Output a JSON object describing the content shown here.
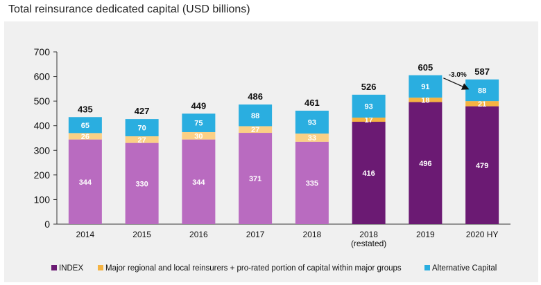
{
  "title": "Total reinsurance dedicated capital (USD billions)",
  "chart_data": {
    "type": "bar",
    "stacked": true,
    "categories": [
      "2014",
      "2015",
      "2016",
      "2017",
      "2018",
      "2018\n(restated)",
      "2019",
      "2020 HY"
    ],
    "series": [
      {
        "name": "INDEX",
        "values": [
          344,
          330,
          344,
          371,
          335,
          416,
          496,
          479
        ],
        "colors": [
          "#b96bc0",
          "#b96bc0",
          "#b96bc0",
          "#b96bc0",
          "#b96bc0",
          "#6b1a73",
          "#6b1a73",
          "#6b1a73"
        ]
      },
      {
        "name": "Major regional and local reinsurers + pro-rated portion of capital within major groups",
        "values": [
          26,
          27,
          30,
          27,
          33,
          17,
          18,
          21
        ],
        "colors": [
          "#fbd085",
          "#fbd085",
          "#fbd085",
          "#fbd085",
          "#fbd085",
          "#f5b342",
          "#f5b342",
          "#f5b342"
        ]
      },
      {
        "name": "Alternative Capital",
        "values": [
          65,
          70,
          75,
          88,
          93,
          93,
          91,
          88
        ],
        "colors": [
          "#2aaee0",
          "#2aaee0",
          "#2aaee0",
          "#2aaee0",
          "#2aaee0",
          "#2aaee0",
          "#2aaee0",
          "#2aaee0"
        ]
      }
    ],
    "totals": [
      435,
      427,
      449,
      486,
      461,
      526,
      605,
      587
    ],
    "annotation": {
      "text": "-3.0%",
      "from_category": "2019",
      "to_category": "2020 HY"
    },
    "ylim": [
      0,
      700
    ],
    "yticks": [
      0,
      100,
      200,
      300,
      400,
      500,
      600,
      700
    ],
    "grid": false,
    "legend_position": "bottom",
    "legend_colors": [
      "#6b1a73",
      "#f5b342",
      "#2aaee0"
    ]
  }
}
